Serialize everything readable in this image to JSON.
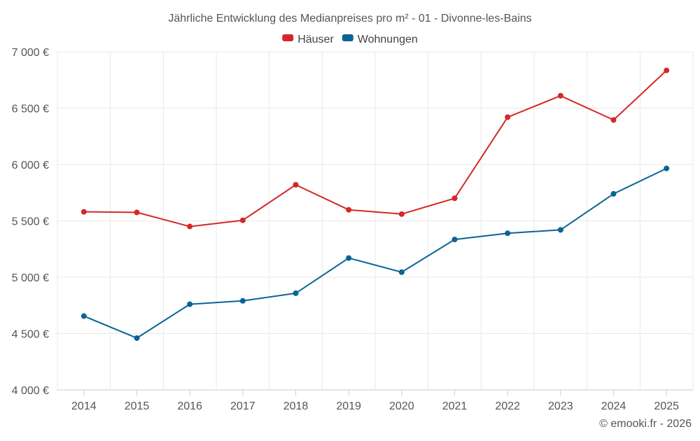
{
  "chart_data": {
    "type": "line",
    "title": "Jährliche Entwicklung des Medianpreises pro m² - 01 - Divonne-les-Bains",
    "categories": [
      "2014",
      "2015",
      "2016",
      "2017",
      "2018",
      "2019",
      "2020",
      "2021",
      "2022",
      "2023",
      "2024",
      "2025"
    ],
    "ylim": [
      4000,
      7000
    ],
    "yticks": [
      4000,
      4500,
      5000,
      5500,
      6000,
      6500,
      7000
    ],
    "ytick_labels": [
      "4 000 €",
      "4 500 €",
      "5 000 €",
      "5 500 €",
      "6 000 €",
      "6 500 €",
      "7 000 €"
    ],
    "grid": true,
    "legend_position": "top-center",
    "series": [
      {
        "name": "Häuser",
        "color": "#d62728",
        "values": [
          5580,
          5575,
          5450,
          5505,
          5820,
          5598,
          5560,
          5700,
          6420,
          6610,
          6395,
          6835
        ]
      },
      {
        "name": "Wohnungen",
        "color": "#0a6496",
        "values": [
          4655,
          4460,
          4760,
          4790,
          4858,
          5170,
          5045,
          5335,
          5390,
          5420,
          5740,
          5965
        ]
      }
    ],
    "credit": "© emooki.fr - 2026"
  }
}
